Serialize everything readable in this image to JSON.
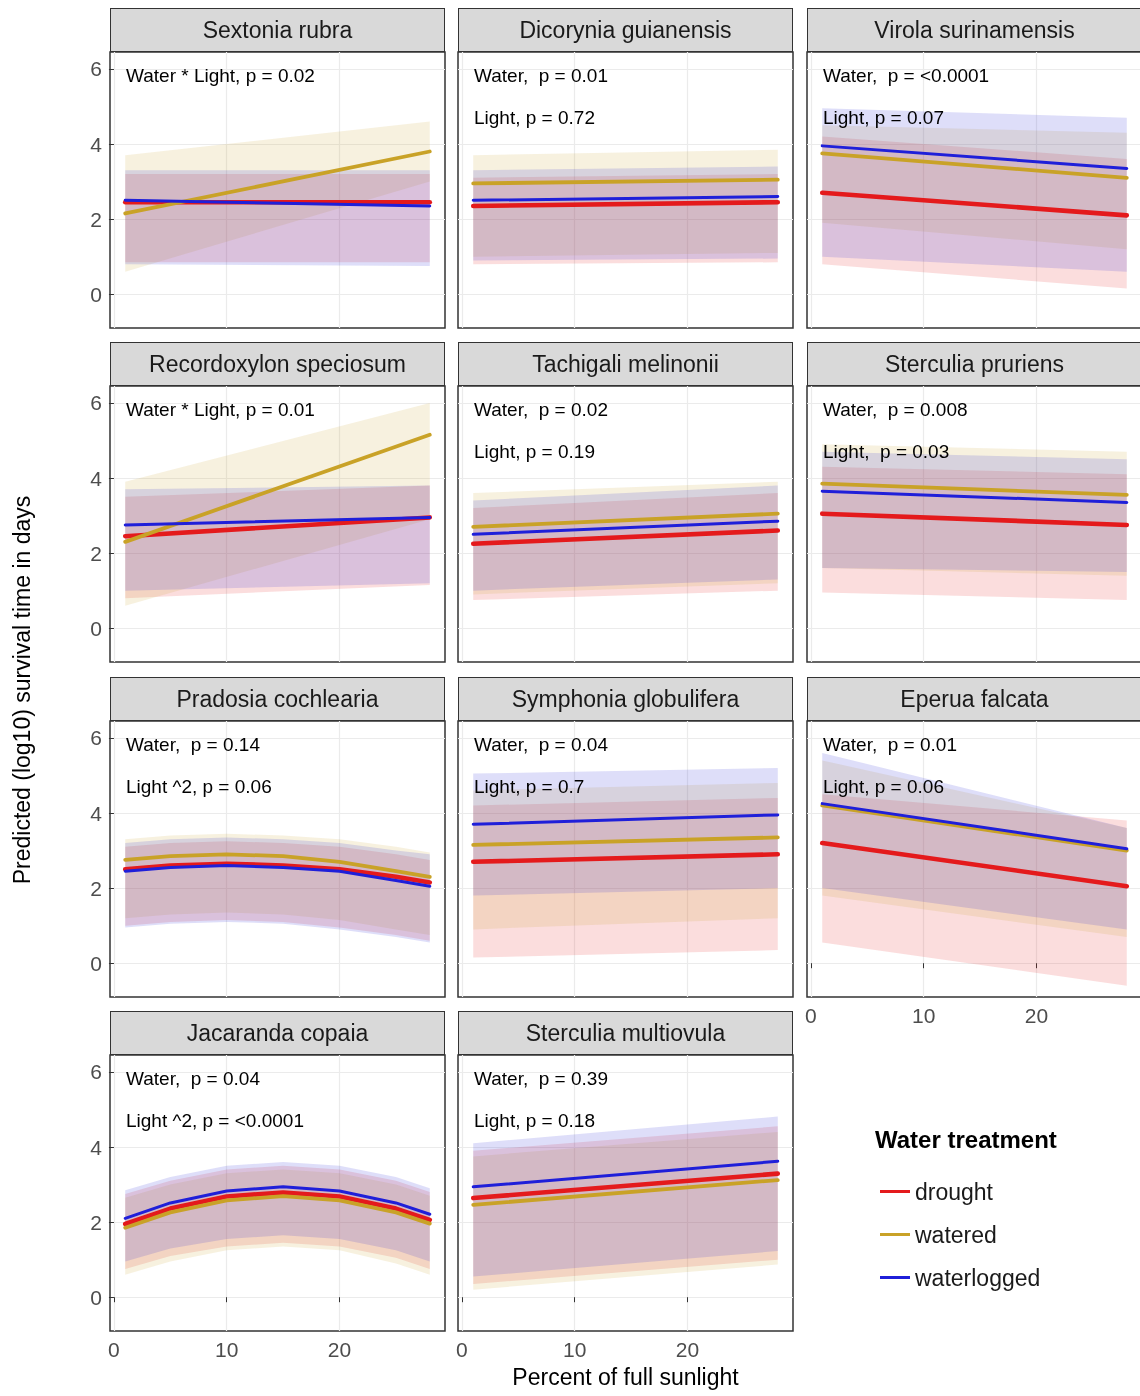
{
  "chart_data": [
    {
      "type": "line",
      "title": "Sextonia rubra",
      "annotations": [
        "Water * Light, p = 0.02"
      ],
      "xlim": [
        -0.35,
        29.35
      ],
      "ylim": [
        -0.9,
        6.45
      ],
      "xticks": [
        0,
        10,
        20
      ],
      "yticks": [
        0,
        2,
        4,
        6
      ],
      "grid": true,
      "tick_labels": "y",
      "series": [
        {
          "color": "#e41a1c",
          "x": [
            1,
            28
          ],
          "values": [
            2.45,
            2.45
          ],
          "lower": [
            0.85,
            0.85
          ],
          "upper": [
            3.2,
            3.2
          ]
        },
        {
          "color": "#c9a227",
          "x": [
            1,
            28
          ],
          "values": [
            2.15,
            3.8
          ],
          "lower": [
            0.6,
            3.0
          ],
          "upper": [
            3.7,
            4.6
          ]
        },
        {
          "color": "#1f1fd9",
          "x": [
            1,
            28
          ],
          "values": [
            2.5,
            2.35
          ],
          "lower": [
            0.8,
            0.75
          ],
          "upper": [
            3.3,
            3.3
          ]
        }
      ]
    },
    {
      "type": "line",
      "title": "Dicorynia guianensis",
      "annotations": [
        "Water,  p = 0.01",
        "Light, p = 0.72"
      ],
      "xlim": [
        -0.35,
        29.35
      ],
      "ylim": [
        -0.9,
        6.45
      ],
      "xticks": [
        0,
        10,
        20
      ],
      "yticks": [
        0,
        2,
        4,
        6
      ],
      "grid": true,
      "tick_labels": false,
      "series": [
        {
          "color": "#e41a1c",
          "x": [
            1,
            28
          ],
          "values": [
            2.35,
            2.45
          ],
          "lower": [
            0.8,
            0.85
          ],
          "upper": [
            3.1,
            3.2
          ]
        },
        {
          "color": "#c9a227",
          "x": [
            1,
            28
          ],
          "values": [
            2.95,
            3.05
          ],
          "lower": [
            1.0,
            1.1
          ],
          "upper": [
            3.7,
            3.85
          ]
        },
        {
          "color": "#1f1fd9",
          "x": [
            1,
            28
          ],
          "values": [
            2.5,
            2.6
          ],
          "lower": [
            0.9,
            0.95
          ],
          "upper": [
            3.3,
            3.4
          ]
        }
      ]
    },
    {
      "type": "line",
      "title": "Virola surinamensis",
      "annotations": [
        "Water,  p = <0.0001",
        "Light, p = 0.07"
      ],
      "xlim": [
        -0.35,
        29.35
      ],
      "ylim": [
        -0.9,
        6.45
      ],
      "xticks": [
        0,
        10,
        20
      ],
      "yticks": [
        0,
        2,
        4,
        6
      ],
      "grid": true,
      "tick_labels": false,
      "series": [
        {
          "color": "#e41a1c",
          "x": [
            1,
            28
          ],
          "values": [
            2.7,
            2.1
          ],
          "lower": [
            0.8,
            0.15
          ],
          "upper": [
            4.2,
            3.6
          ]
        },
        {
          "color": "#c9a227",
          "x": [
            1,
            28
          ],
          "values": [
            3.75,
            3.1
          ],
          "lower": [
            1.9,
            1.2
          ],
          "upper": [
            4.5,
            4.3
          ]
        },
        {
          "color": "#1f1fd9",
          "x": [
            1,
            28
          ],
          "values": [
            3.95,
            3.35
          ],
          "lower": [
            1.0,
            0.6
          ],
          "upper": [
            4.95,
            4.7
          ]
        }
      ]
    },
    {
      "type": "line",
      "title": "Recordoxylon speciosum",
      "annotations": [
        "Water * Light, p = 0.01"
      ],
      "xlim": [
        -0.35,
        29.35
      ],
      "ylim": [
        -0.9,
        6.45
      ],
      "xticks": [
        0,
        10,
        20
      ],
      "yticks": [
        0,
        2,
        4,
        6
      ],
      "grid": true,
      "tick_labels": "y",
      "series": [
        {
          "color": "#e41a1c",
          "x": [
            1,
            28
          ],
          "values": [
            2.45,
            2.95
          ],
          "lower": [
            0.8,
            1.15
          ],
          "upper": [
            3.5,
            3.8
          ]
        },
        {
          "color": "#c9a227",
          "x": [
            1,
            28
          ],
          "values": [
            2.3,
            5.15
          ],
          "lower": [
            0.6,
            2.9
          ],
          "upper": [
            3.9,
            6.0
          ]
        },
        {
          "color": "#1f1fd9",
          "x": [
            1,
            28
          ],
          "values": [
            2.75,
            2.95
          ],
          "lower": [
            1.0,
            1.2
          ],
          "upper": [
            3.7,
            3.8
          ]
        }
      ]
    },
    {
      "type": "line",
      "title": "Tachigali melinonii",
      "annotations": [
        "Water,  p = 0.02",
        "Light, p = 0.19"
      ],
      "xlim": [
        -0.35,
        29.35
      ],
      "ylim": [
        -0.9,
        6.45
      ],
      "xticks": [
        0,
        10,
        20
      ],
      "yticks": [
        0,
        2,
        4,
        6
      ],
      "grid": true,
      "tick_labels": false,
      "series": [
        {
          "color": "#e41a1c",
          "x": [
            1,
            28
          ],
          "values": [
            2.25,
            2.6
          ],
          "lower": [
            0.75,
            1.0
          ],
          "upper": [
            3.2,
            3.6
          ]
        },
        {
          "color": "#c9a227",
          "x": [
            1,
            28
          ],
          "values": [
            2.7,
            3.05
          ],
          "lower": [
            0.9,
            1.2
          ],
          "upper": [
            3.6,
            3.9
          ]
        },
        {
          "color": "#1f1fd9",
          "x": [
            1,
            28
          ],
          "values": [
            2.5,
            2.85
          ],
          "lower": [
            1.0,
            1.3
          ],
          "upper": [
            3.4,
            3.8
          ]
        }
      ]
    },
    {
      "type": "line",
      "title": "Sterculia pruriens",
      "annotations": [
        "Water,  p = 0.008",
        "Light,  p = 0.03"
      ],
      "xlim": [
        -0.35,
        29.35
      ],
      "ylim": [
        -0.9,
        6.45
      ],
      "xticks": [
        0,
        10,
        20
      ],
      "yticks": [
        0,
        2,
        4,
        6
      ],
      "grid": true,
      "tick_labels": false,
      "series": [
        {
          "color": "#e41a1c",
          "x": [
            1,
            28
          ],
          "values": [
            3.05,
            2.75
          ],
          "lower": [
            0.95,
            0.75
          ],
          "upper": [
            4.3,
            4.1
          ]
        },
        {
          "color": "#c9a227",
          "x": [
            1,
            28
          ],
          "values": [
            3.85,
            3.55
          ],
          "lower": [
            1.6,
            1.4
          ],
          "upper": [
            4.9,
            4.7
          ]
        },
        {
          "color": "#1f1fd9",
          "x": [
            1,
            28
          ],
          "values": [
            3.65,
            3.35
          ],
          "lower": [
            1.6,
            1.5
          ],
          "upper": [
            4.7,
            4.5
          ]
        }
      ]
    },
    {
      "type": "line",
      "title": "Pradosia cochlearia",
      "ylabel": "Predicted (log10) survival time in days",
      "annotations": [
        "Water,  p = 0.14",
        "Light ^2, p = 0.06"
      ],
      "xlim": [
        -0.35,
        29.35
      ],
      "ylim": [
        -0.9,
        6.45
      ],
      "xticks": [
        0,
        10,
        20
      ],
      "yticks": [
        0,
        2,
        4,
        6
      ],
      "grid": true,
      "tick_labels": "y",
      "series": [
        {
          "color": "#e41a1c",
          "x": [
            1,
            5,
            10,
            15,
            20,
            25,
            28
          ],
          "values": [
            2.5,
            2.6,
            2.65,
            2.6,
            2.5,
            2.3,
            2.15
          ],
          "lower": [
            1.0,
            1.1,
            1.15,
            1.1,
            0.95,
            0.75,
            0.6
          ],
          "upper": [
            3.1,
            3.2,
            3.25,
            3.2,
            3.1,
            2.9,
            2.75
          ]
        },
        {
          "color": "#c9a227",
          "x": [
            1,
            5,
            10,
            15,
            20,
            25,
            28
          ],
          "values": [
            2.75,
            2.85,
            2.9,
            2.85,
            2.7,
            2.45,
            2.3
          ],
          "lower": [
            1.2,
            1.3,
            1.35,
            1.3,
            1.15,
            0.9,
            0.75
          ],
          "upper": [
            3.3,
            3.4,
            3.45,
            3.4,
            3.3,
            3.1,
            2.95
          ]
        },
        {
          "color": "#1f1fd9",
          "x": [
            1,
            5,
            10,
            15,
            20,
            25,
            28
          ],
          "values": [
            2.45,
            2.55,
            2.6,
            2.55,
            2.45,
            2.2,
            2.05
          ],
          "lower": [
            0.95,
            1.05,
            1.1,
            1.05,
            0.9,
            0.7,
            0.55
          ],
          "upper": [
            3.2,
            3.3,
            3.35,
            3.3,
            3.2,
            3.0,
            2.9
          ]
        }
      ]
    },
    {
      "type": "line",
      "title": "Symphonia globulifera",
      "annotations": [
        "Water,  p = 0.04",
        "Light, p = 0.7"
      ],
      "xlim": [
        -0.35,
        29.35
      ],
      "ylim": [
        -0.9,
        6.45
      ],
      "xticks": [
        0,
        10,
        20
      ],
      "yticks": [
        0,
        2,
        4,
        6
      ],
      "grid": true,
      "tick_labels": false,
      "series": [
        {
          "color": "#e41a1c",
          "x": [
            1,
            28
          ],
          "values": [
            2.7,
            2.9
          ],
          "lower": [
            0.15,
            0.35
          ],
          "upper": [
            4.2,
            4.4
          ]
        },
        {
          "color": "#c9a227",
          "x": [
            1,
            28
          ],
          "values": [
            3.15,
            3.35
          ],
          "lower": [
            0.9,
            1.2
          ],
          "upper": [
            4.6,
            4.8
          ]
        },
        {
          "color": "#1f1fd9",
          "x": [
            1,
            28
          ],
          "values": [
            3.7,
            3.95
          ],
          "lower": [
            1.8,
            2.0
          ],
          "upper": [
            5.05,
            5.2
          ]
        }
      ]
    },
    {
      "type": "line",
      "title": "Eperua falcata",
      "annotations": [
        "Water,  p = 0.01",
        "Light, p = 0.06"
      ],
      "xlim": [
        -0.35,
        29.35
      ],
      "ylim": [
        -0.9,
        6.45
      ],
      "xticks": [
        0,
        10,
        20
      ],
      "yticks": [
        0,
        2,
        4,
        6
      ],
      "grid": true,
      "tick_labels": "x",
      "series": [
        {
          "color": "#e41a1c",
          "x": [
            1,
            28
          ],
          "values": [
            3.2,
            2.05
          ],
          "lower": [
            0.55,
            -0.6
          ],
          "upper": [
            4.5,
            3.8
          ]
        },
        {
          "color": "#c9a227",
          "x": [
            1,
            28
          ],
          "values": [
            4.2,
            3.0
          ],
          "lower": [
            1.8,
            0.7
          ],
          "upper": [
            5.4,
            3.6
          ]
        },
        {
          "color": "#1f1fd9",
          "x": [
            1,
            28
          ],
          "values": [
            4.25,
            3.05
          ],
          "lower": [
            2.0,
            0.9
          ],
          "upper": [
            5.6,
            3.6
          ]
        }
      ]
    },
    {
      "type": "line",
      "title": "Jacaranda copaia",
      "annotations": [
        "Water,  p = 0.04",
        "Light ^2, p = <0.0001"
      ],
      "xlim": [
        -0.35,
        29.35
      ],
      "ylim": [
        -0.9,
        6.45
      ],
      "xticks": [
        0,
        10,
        20
      ],
      "yticks": [
        0,
        2,
        4,
        6
      ],
      "grid": true,
      "series": [
        {
          "color": "#e41a1c",
          "x": [
            1,
            5,
            10,
            15,
            20,
            25,
            28
          ],
          "values": [
            1.95,
            2.36,
            2.68,
            2.79,
            2.68,
            2.36,
            2.06
          ],
          "lower": [
            0.75,
            1.1,
            1.35,
            1.45,
            1.35,
            1.05,
            0.75
          ],
          "upper": [
            2.75,
            3.1,
            3.4,
            3.5,
            3.4,
            3.1,
            2.8
          ]
        },
        {
          "color": "#c9a227",
          "x": [
            1,
            5,
            10,
            15,
            20,
            25,
            28
          ],
          "values": [
            1.85,
            2.26,
            2.58,
            2.69,
            2.58,
            2.26,
            1.96
          ],
          "lower": [
            0.6,
            0.95,
            1.25,
            1.35,
            1.25,
            0.9,
            0.6
          ],
          "upper": [
            2.65,
            3.0,
            3.3,
            3.4,
            3.3,
            3.0,
            2.7
          ]
        },
        {
          "color": "#1f1fd9",
          "x": [
            1,
            5,
            10,
            15,
            20,
            25,
            28
          ],
          "values": [
            2.1,
            2.51,
            2.83,
            2.94,
            2.83,
            2.51,
            2.21
          ],
          "lower": [
            0.95,
            1.3,
            1.55,
            1.65,
            1.55,
            1.25,
            0.95
          ],
          "upper": [
            2.85,
            3.2,
            3.5,
            3.6,
            3.5,
            3.2,
            2.9
          ]
        }
      ]
    },
    {
      "type": "line",
      "title": "Sterculia multiovula",
      "xlabel": "Percent of full sunlight",
      "legend_title": "Water treatment",
      "legend": "right",
      "annotations": [
        "Water,  p = 0.39",
        "Light, p = 0.18"
      ],
      "xlim": [
        -0.35,
        29.35
      ],
      "ylim": [
        -0.9,
        6.45
      ],
      "xticks": [
        0,
        10,
        20
      ],
      "yticks": [
        0,
        2,
        4,
        6
      ],
      "grid": true,
      "tick_labels": "x",
      "series": [
        {
          "name": "drought",
          "color": "#e41a1c",
          "x": [
            1,
            28
          ],
          "values": [
            2.64,
            3.29
          ],
          "lower": [
            0.35,
            1.0
          ],
          "upper": [
            3.9,
            4.55
          ]
        },
        {
          "name": "watered",
          "color": "#c9a227",
          "x": [
            1,
            28
          ],
          "values": [
            2.46,
            3.12
          ],
          "lower": [
            0.2,
            0.87
          ],
          "upper": [
            3.75,
            4.4
          ]
        },
        {
          "name": "waterlogged",
          "color": "#1f1fd9",
          "x": [
            1,
            28
          ],
          "values": [
            2.94,
            3.62
          ],
          "lower": [
            0.55,
            1.23
          ],
          "upper": [
            4.1,
            4.81
          ]
        }
      ]
    }
  ]
}
